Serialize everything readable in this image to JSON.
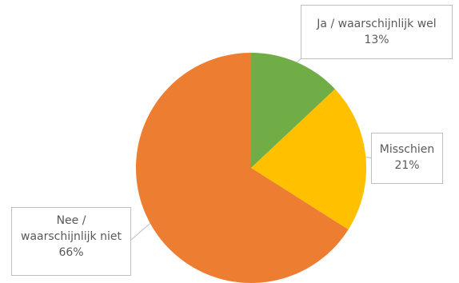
{
  "chart_data": {
    "type": "pie",
    "title": "",
    "legend": "none",
    "slices": [
      {
        "label_lines": [
          "Ja / waarschijnlijk wel"
        ],
        "value": 13,
        "value_label": "13%",
        "color": "#70ad47"
      },
      {
        "label_lines": [
          "Misschien"
        ],
        "value": 21,
        "value_label": "21%",
        "color": "#ffc000"
      },
      {
        "label_lines": [
          "Nee /",
          "waarschijnlijk niet"
        ],
        "value": 66,
        "value_label": "66%",
        "color": "#ed7d31"
      }
    ]
  }
}
